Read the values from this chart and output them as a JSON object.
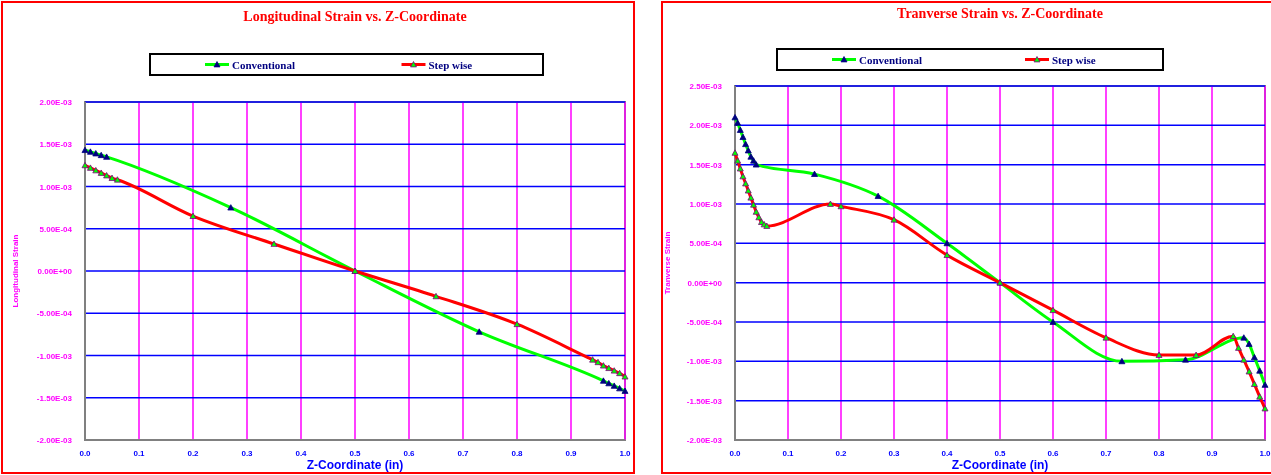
{
  "chart_data": [
    {
      "type": "line",
      "title": "Longitudinal Strain vs. Z-Coordinate",
      "xlabel": "Z-Coordinate (in)",
      "ylabel": "Longitudinal Strain",
      "xlim": [
        0,
        1
      ],
      "ylim": [
        -0.002,
        0.002
      ],
      "xticks": [
        {
          "value": 0,
          "label": "0.0"
        },
        {
          "value": 0.1,
          "label": "0.1"
        },
        {
          "value": 0.2,
          "label": "0.2"
        },
        {
          "value": 0.3,
          "label": "0.3"
        },
        {
          "value": 0.4,
          "label": "0.4"
        },
        {
          "value": 0.5,
          "label": "0.5"
        },
        {
          "value": 0.6,
          "label": "0.6"
        },
        {
          "value": 0.7,
          "label": "0.7"
        },
        {
          "value": 0.8,
          "label": "0.8"
        },
        {
          "value": 0.9,
          "label": "0.9"
        },
        {
          "value": 1,
          "label": "1.0"
        }
      ],
      "yticks": [
        {
          "value": -0.002,
          "label": "-2.00E-03"
        },
        {
          "value": -0.0015,
          "label": "-1.50E-03"
        },
        {
          "value": -0.001,
          "label": "-1.00E-03"
        },
        {
          "value": -0.0005,
          "label": "-5.00E-04"
        },
        {
          "value": 0,
          "label": "0.00E+00"
        },
        {
          "value": 0.0005,
          "label": "5.00E-04"
        },
        {
          "value": 0.001,
          "label": "1.00E-03"
        },
        {
          "value": 0.0015,
          "label": "1.50E-03"
        },
        {
          "value": 0.002,
          "label": "2.00E-03"
        }
      ],
      "grid": true,
      "legend": "top",
      "marker": "triangle",
      "line_style": "solid",
      "series": [
        {
          "name": "Conventional",
          "color": "#00ff00",
          "x": [
            0,
            0.01,
            0.02,
            0.03,
            0.04,
            0.27,
            0.5,
            0.73,
            0.96,
            0.97,
            0.98,
            0.99,
            1.0
          ],
          "values": [
            0.00143,
            0.00141,
            0.00139,
            0.00137,
            0.00135,
            0.00075,
            0,
            -0.00072,
            -0.0013,
            -0.00133,
            -0.00136,
            -0.00139,
            -0.00142
          ]
        },
        {
          "name": "Step wise",
          "color": "#ff0000",
          "x": [
            0,
            0.01,
            0.02,
            0.03,
            0.04,
            0.05,
            0.06,
            0.2,
            0.35,
            0.5,
            0.65,
            0.8,
            0.94,
            0.95,
            0.96,
            0.97,
            0.98,
            0.99,
            1.0
          ],
          "values": [
            0.00125,
            0.00122,
            0.00119,
            0.00116,
            0.00113,
            0.0011,
            0.00108,
            0.00065,
            0.00032,
            0,
            -0.0003,
            -0.00063,
            -0.00105,
            -0.00108,
            -0.00112,
            -0.00115,
            -0.00118,
            -0.00121,
            -0.00125
          ]
        }
      ]
    },
    {
      "type": "line",
      "title": "Tranverse Strain vs. Z-Coordinate",
      "xlabel": "Z-Coordinate (in)",
      "ylabel": "Tranverse Strain",
      "xlim": [
        0,
        1
      ],
      "ylim": [
        -0.002,
        0.0025
      ],
      "xticks": [
        {
          "value": 0,
          "label": "0.0"
        },
        {
          "value": 0.1,
          "label": "0.1"
        },
        {
          "value": 0.2,
          "label": "0.2"
        },
        {
          "value": 0.3,
          "label": "0.3"
        },
        {
          "value": 0.4,
          "label": "0.4"
        },
        {
          "value": 0.5,
          "label": "0.5"
        },
        {
          "value": 0.6,
          "label": "0.6"
        },
        {
          "value": 0.7,
          "label": "0.7"
        },
        {
          "value": 0.8,
          "label": "0.8"
        },
        {
          "value": 0.9,
          "label": "0.9"
        },
        {
          "value": 1,
          "label": "1.0"
        }
      ],
      "yticks": [
        {
          "value": -0.002,
          "label": "-2.00E-03"
        },
        {
          "value": -0.0015,
          "label": "-1.50E-03"
        },
        {
          "value": -0.001,
          "label": "-1.00E-03"
        },
        {
          "value": -0.0005,
          "label": "-5.00E-04"
        },
        {
          "value": 0,
          "label": "0.00E+00"
        },
        {
          "value": 0.0005,
          "label": "5.00E-04"
        },
        {
          "value": 0.001,
          "label": "1.00E-03"
        },
        {
          "value": 0.0015,
          "label": "1.50E-03"
        },
        {
          "value": 0.002,
          "label": "2.00E-03"
        },
        {
          "value": 0.0025,
          "label": "2.50E-03"
        }
      ],
      "grid": true,
      "legend": "top",
      "marker": "triangle",
      "line_style": "solid",
      "series": [
        {
          "name": "Conventional",
          "color": "#00ff00",
          "x": [
            0,
            0.005,
            0.01,
            0.015,
            0.02,
            0.025,
            0.03,
            0.035,
            0.04,
            0.15,
            0.27,
            0.4,
            0.5,
            0.6,
            0.73,
            0.85,
            0.96,
            0.97,
            0.98,
            0.99,
            1.0
          ],
          "values": [
            0.0021,
            0.00203,
            0.00194,
            0.00185,
            0.00176,
            0.00168,
            0.0016,
            0.00155,
            0.0015,
            0.00138,
            0.0011,
            0.0005,
            0,
            -0.0005,
            -0.001,
            -0.00098,
            -0.0007,
            -0.00078,
            -0.00095,
            -0.00112,
            -0.0013
          ]
        },
        {
          "name": "Step wise",
          "color": "#ff0000",
          "x": [
            0,
            0.005,
            0.01,
            0.015,
            0.02,
            0.025,
            0.03,
            0.035,
            0.04,
            0.045,
            0.05,
            0.055,
            0.06,
            0.18,
            0.2,
            0.3,
            0.4,
            0.5,
            0.6,
            0.7,
            0.8,
            0.87,
            0.94,
            0.95,
            0.96,
            0.97,
            0.98,
            0.99,
            1.0
          ],
          "values": [
            0.00165,
            0.00155,
            0.00145,
            0.00135,
            0.00126,
            0.00117,
            0.00108,
            0.00099,
            0.0009,
            0.00083,
            0.00077,
            0.00074,
            0.00072,
            0.001,
            0.00097,
            0.0008,
            0.00035,
            0,
            -0.00035,
            -0.0007,
            -0.00092,
            -0.00092,
            -0.00068,
            -0.00083,
            -0.00098,
            -0.00113,
            -0.00129,
            -0.00145,
            -0.0016
          ]
        }
      ]
    }
  ]
}
